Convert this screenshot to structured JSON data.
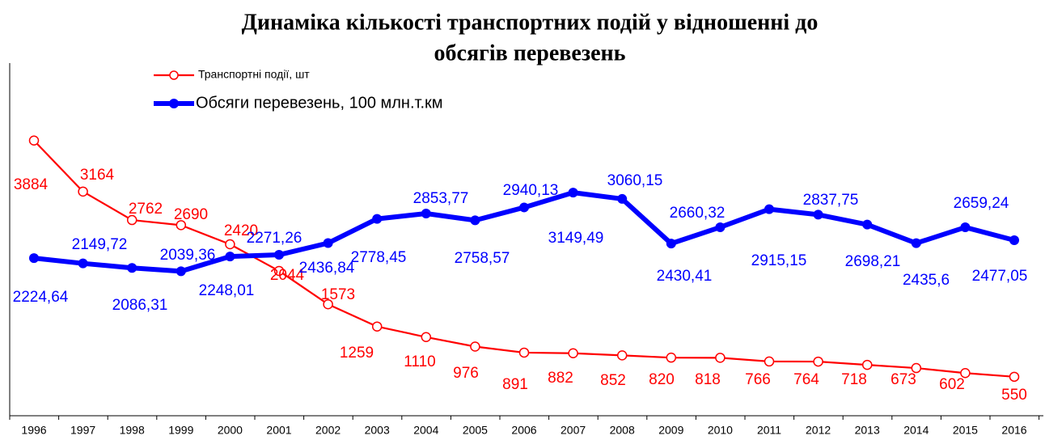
{
  "chart_data": {
    "type": "line",
    "title": [
      "Динаміка кількості транспортних подій у відношенні  до",
      "обсягів перевезень"
    ],
    "categories": [
      "1996",
      "1997",
      "1998",
      "1999",
      "2000",
      "2001",
      "2002",
      "2003",
      "2004",
      "2005",
      "2006",
      "2007",
      "2008",
      "2009",
      "2010",
      "2011",
      "2012",
      "2013",
      "2014",
      "2015",
      "2016"
    ],
    "ylim": [
      0,
      5000
    ],
    "series": [
      {
        "name": "Транспортні події, шт",
        "color": "#ff0000",
        "values": [
          3884,
          3164,
          2762,
          2690,
          2420,
          2044,
          1573,
          1259,
          1110,
          976,
          891,
          882,
          852,
          820,
          818,
          766,
          764,
          718,
          673,
          602,
          550
        ]
      },
      {
        "name": "Обсяги перевезень, 100 млн.т.км",
        "color": "#0000ff",
        "values": [
          2224.64,
          2149.72,
          2086.31,
          2039.36,
          2248.01,
          2271.26,
          2436.84,
          2778.45,
          2853.77,
          2758.57,
          2940.13,
          3149.49,
          3060.15,
          2430.41,
          2660.32,
          2915.15,
          2837.75,
          2698.21,
          2435.6,
          2659.24,
          2477.05
        ],
        "value_labels": [
          "2224,64",
          "2149,72",
          "2086,31",
          "2039,36",
          "2248,01",
          "2271,26",
          "2436,84",
          "2778,45",
          "2853,77",
          "2758,57",
          "2940,13",
          "3149,49",
          "3060,15",
          "2430,41",
          "2660,32",
          "2915,15",
          "2837,75",
          "2698,21",
          "2435,6",
          "2659,24",
          "2477,05"
        ]
      }
    ]
  }
}
